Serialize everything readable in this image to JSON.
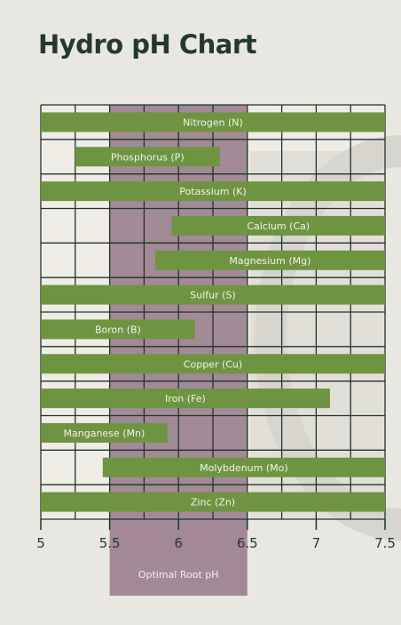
{
  "title": "Hydro pH Chart",
  "chart_data": {
    "type": "bar",
    "orientation": "horizontal-range",
    "title": "Hydro pH Chart",
    "xlim": [
      5,
      7.5
    ],
    "xticks": [
      "5",
      "5.5",
      "6",
      "6.5",
      "7",
      "7.5"
    ],
    "grid": true,
    "optimal_band": {
      "label": "Optimal Root pH",
      "start": 5.5,
      "end": 6.5
    },
    "nutrients": [
      {
        "label": "Nitrogen (N)",
        "start": 5.0,
        "end": 7.5
      },
      {
        "label": "Phosphorus (P)",
        "start": 5.25,
        "end": 6.3
      },
      {
        "label": "Potassium (K)",
        "start": 5.0,
        "end": 7.5
      },
      {
        "label": "Calcium (Ca)",
        "start": 5.95,
        "end": 7.5
      },
      {
        "label": "Magnesium (Mg)",
        "start": 5.83,
        "end": 7.5
      },
      {
        "label": "Sulfur (S)",
        "start": 5.0,
        "end": 7.5
      },
      {
        "label": "Boron (B)",
        "start": 5.0,
        "end": 6.12
      },
      {
        "label": "Copper (Cu)",
        "start": 5.0,
        "end": 7.5
      },
      {
        "label": "Iron (Fe)",
        "start": 5.0,
        "end": 7.1
      },
      {
        "label": "Manganese (Mn)",
        "start": 5.0,
        "end": 5.92
      },
      {
        "label": "Molybdenum (Mo)",
        "start": 5.45,
        "end": 7.5
      },
      {
        "label": "Zinc (Zn)",
        "start": 5.0,
        "end": 7.5
      }
    ],
    "colors": {
      "bar": "#6e9442",
      "band": "#9c8190",
      "grid": "#1f3428",
      "cell": "#eeece5",
      "background": "#e9e7e1",
      "title": "#24392f"
    }
  }
}
